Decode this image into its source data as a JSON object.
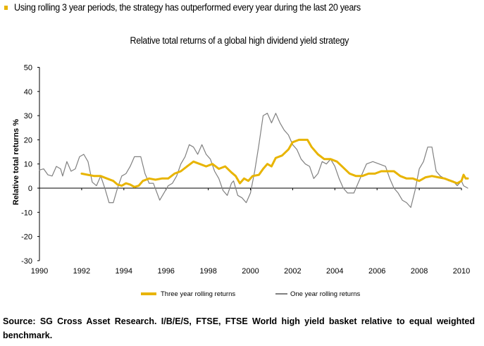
{
  "header": {
    "bullet_text": "Using rolling 3 year periods, the strategy has outperformed every year during the last 20 years",
    "bullet_color": "#e8b400"
  },
  "footer": {
    "source": "Source: SG Cross Asset Research. I/B/E/S, FTSE, FTSE World high yield basket relative to equal weighted benchmark."
  },
  "chart_data": {
    "type": "line",
    "title": "Relative total returns of a global high dividend yield strategy",
    "xlabel": "",
    "ylabel": "Relative total returns %",
    "xlim": [
      1990,
      2010.3
    ],
    "ylim": [
      -30,
      50
    ],
    "x_ticks": [
      "1990",
      "1992",
      "1994",
      "1996",
      "1998",
      "2000",
      "2002",
      "2004",
      "2006",
      "2008",
      "2010"
    ],
    "y_ticks": [
      "50",
      "40",
      "30",
      "20",
      "10",
      "0",
      "-10",
      "-20",
      "-30"
    ],
    "grid": false,
    "legend_position": "bottom",
    "series": [
      {
        "name": "Three year rolling returns",
        "color": "#e8b400",
        "points": [
          [
            1992.0,
            6
          ],
          [
            1992.3,
            5.5
          ],
          [
            1992.6,
            5
          ],
          [
            1992.9,
            5
          ],
          [
            1993.2,
            4
          ],
          [
            1993.5,
            3
          ],
          [
            1993.7,
            1.5
          ],
          [
            1993.9,
            1
          ],
          [
            1994.1,
            2
          ],
          [
            1994.3,
            1.5
          ],
          [
            1994.5,
            0.5
          ],
          [
            1994.7,
            1
          ],
          [
            1994.9,
            3
          ],
          [
            1995.2,
            4
          ],
          [
            1995.5,
            3.5
          ],
          [
            1995.8,
            4
          ],
          [
            1996.1,
            4
          ],
          [
            1996.4,
            6
          ],
          [
            1996.7,
            7
          ],
          [
            1997.0,
            9
          ],
          [
            1997.3,
            11
          ],
          [
            1997.6,
            10
          ],
          [
            1997.9,
            9
          ],
          [
            1998.2,
            10
          ],
          [
            1998.5,
            8
          ],
          [
            1998.8,
            9
          ],
          [
            1999.1,
            6.5
          ],
          [
            1999.3,
            5
          ],
          [
            1999.5,
            2
          ],
          [
            1999.7,
            4
          ],
          [
            1999.9,
            3
          ],
          [
            2000.1,
            5
          ],
          [
            2000.4,
            5.5
          ],
          [
            2000.6,
            8
          ],
          [
            2000.8,
            10
          ],
          [
            2001.0,
            9
          ],
          [
            2001.2,
            12.5
          ],
          [
            2001.5,
            13.5
          ],
          [
            2001.8,
            16
          ],
          [
            2002.0,
            19
          ],
          [
            2002.3,
            20
          ],
          [
            2002.7,
            20
          ],
          [
            2002.9,
            17
          ],
          [
            2003.2,
            14
          ],
          [
            2003.5,
            12
          ],
          [
            2003.8,
            12
          ],
          [
            2004.1,
            11
          ],
          [
            2004.4,
            8.5
          ],
          [
            2004.7,
            6
          ],
          [
            2005.0,
            5
          ],
          [
            2005.3,
            5
          ],
          [
            2005.6,
            6
          ],
          [
            2005.9,
            6
          ],
          [
            2006.2,
            7
          ],
          [
            2006.5,
            7
          ],
          [
            2006.8,
            7
          ],
          [
            2007.1,
            5
          ],
          [
            2007.4,
            4
          ],
          [
            2007.7,
            4
          ],
          [
            2008.0,
            3
          ],
          [
            2008.3,
            4.5
          ],
          [
            2008.6,
            5
          ],
          [
            2008.9,
            4.5
          ],
          [
            2009.2,
            4
          ],
          [
            2009.5,
            3
          ],
          [
            2009.8,
            2
          ],
          [
            2010.0,
            3
          ],
          [
            2010.1,
            5.5
          ],
          [
            2010.2,
            4
          ],
          [
            2010.3,
            4
          ]
        ]
      },
      {
        "name": "One year rolling returns",
        "color": "#808080",
        "points": [
          [
            1990.0,
            7.5
          ],
          [
            1990.2,
            8
          ],
          [
            1990.4,
            5.5
          ],
          [
            1990.6,
            5
          ],
          [
            1990.8,
            9
          ],
          [
            1991.0,
            8
          ],
          [
            1991.1,
            5
          ],
          [
            1991.3,
            11
          ],
          [
            1991.5,
            7
          ],
          [
            1991.7,
            8
          ],
          [
            1991.9,
            13
          ],
          [
            1992.1,
            14
          ],
          [
            1992.3,
            11
          ],
          [
            1992.5,
            2.5
          ],
          [
            1992.7,
            1
          ],
          [
            1992.9,
            5
          ],
          [
            1993.1,
            0
          ],
          [
            1993.3,
            -6
          ],
          [
            1993.5,
            -6
          ],
          [
            1993.7,
            0
          ],
          [
            1993.9,
            5
          ],
          [
            1994.1,
            6
          ],
          [
            1994.3,
            9
          ],
          [
            1994.5,
            13
          ],
          [
            1994.8,
            13
          ],
          [
            1995.0,
            6
          ],
          [
            1995.2,
            2
          ],
          [
            1995.4,
            2
          ],
          [
            1995.7,
            -5
          ],
          [
            1995.9,
            -2
          ],
          [
            1996.1,
            1
          ],
          [
            1996.3,
            2
          ],
          [
            1996.5,
            5
          ],
          [
            1996.7,
            10
          ],
          [
            1996.9,
            13
          ],
          [
            1997.1,
            18
          ],
          [
            1997.3,
            17
          ],
          [
            1997.5,
            14
          ],
          [
            1997.7,
            18
          ],
          [
            1997.9,
            14
          ],
          [
            1998.1,
            12
          ],
          [
            1998.3,
            7
          ],
          [
            1998.5,
            4
          ],
          [
            1998.7,
            -1
          ],
          [
            1998.9,
            -3
          ],
          [
            1999.1,
            2
          ],
          [
            1999.2,
            3
          ],
          [
            1999.4,
            -3
          ],
          [
            1999.6,
            -4
          ],
          [
            1999.8,
            -6
          ],
          [
            2000.0,
            -2
          ],
          [
            2000.2,
            7
          ],
          [
            2000.4,
            18
          ],
          [
            2000.6,
            30
          ],
          [
            2000.8,
            31
          ],
          [
            2001.0,
            27
          ],
          [
            2001.2,
            31
          ],
          [
            2001.4,
            27
          ],
          [
            2001.6,
            24
          ],
          [
            2001.8,
            22
          ],
          [
            2002.0,
            18
          ],
          [
            2002.2,
            16
          ],
          [
            2002.4,
            12
          ],
          [
            2002.6,
            10
          ],
          [
            2002.8,
            9
          ],
          [
            2003.0,
            4
          ],
          [
            2003.2,
            6
          ],
          [
            2003.4,
            11
          ],
          [
            2003.6,
            10
          ],
          [
            2003.8,
            12
          ],
          [
            2004.0,
            9
          ],
          [
            2004.2,
            4
          ],
          [
            2004.4,
            0
          ],
          [
            2004.6,
            -2
          ],
          [
            2004.9,
            -2
          ],
          [
            2005.1,
            2
          ],
          [
            2005.3,
            6
          ],
          [
            2005.5,
            10
          ],
          [
            2005.8,
            11
          ],
          [
            2006.1,
            10
          ],
          [
            2006.4,
            9
          ],
          [
            2006.6,
            4
          ],
          [
            2006.8,
            0
          ],
          [
            2007.0,
            -2
          ],
          [
            2007.2,
            -5
          ],
          [
            2007.4,
            -6
          ],
          [
            2007.6,
            -8
          ],
          [
            2007.8,
            -1
          ],
          [
            2008.0,
            8
          ],
          [
            2008.2,
            11
          ],
          [
            2008.4,
            17
          ],
          [
            2008.6,
            17
          ],
          [
            2008.8,
            7
          ],
          [
            2009.0,
            5
          ],
          [
            2009.2,
            4
          ],
          [
            2009.4,
            3
          ],
          [
            2009.6,
            3
          ],
          [
            2009.8,
            1
          ],
          [
            2010.0,
            3
          ],
          [
            2010.1,
            1
          ],
          [
            2010.3,
            0
          ]
        ]
      }
    ]
  }
}
